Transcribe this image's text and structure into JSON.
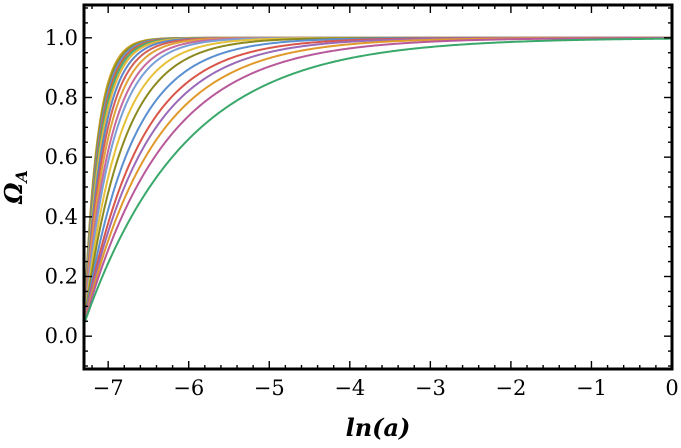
{
  "chart_data": {
    "type": "line",
    "title": "",
    "xlabel": "ln(a)",
    "ylabel": "ΩA",
    "xlim": [
      -7.3,
      0
    ],
    "ylim": [
      -0.11,
      1.11
    ],
    "x_ticks": [
      -7,
      -6,
      -5,
      -4,
      -3,
      -2,
      -1,
      0
    ],
    "x_tick_labels": [
      "−7",
      "−6",
      "−5",
      "−4",
      "−3",
      "−2",
      "−1",
      "0"
    ],
    "y_ticks": [
      0.0,
      0.2,
      0.4,
      0.6,
      0.8,
      1.0
    ],
    "y_tick_labels": [
      "0.0",
      "0.2",
      "0.4",
      "0.6",
      "0.8",
      "1.0"
    ],
    "grid": false,
    "legend": "none",
    "curve_model": "Omega_A = 1 - (1 - 0.04) * exp(-k * (ln(a) + 7.3)); each series is listed by its rate k",
    "x_start": -7.3,
    "start_value": 0.04,
    "series": [
      {
        "k": 6.2,
        "color": "#c9a227"
      },
      {
        "k": 5.9,
        "color": "#8f8f1e"
      },
      {
        "k": 5.6,
        "color": "#6a8fd8"
      },
      {
        "k": 5.3,
        "color": "#d0693a"
      },
      {
        "k": 5.0,
        "color": "#4aae7a"
      },
      {
        "k": 4.7,
        "color": "#e3b83a"
      },
      {
        "k": 4.3,
        "color": "#5b86c9"
      },
      {
        "k": 3.9,
        "color": "#d1605a"
      },
      {
        "k": 3.5,
        "color": "#e0a23a"
      },
      {
        "k": 3.1,
        "color": "#c76a9e"
      },
      {
        "k": 2.8,
        "color": "#7a9fd6"
      },
      {
        "k": 2.4,
        "color": "#e6c13a"
      },
      {
        "k": 2.05,
        "color": "#8c8a1f"
      },
      {
        "k": 1.7,
        "color": "#5a8fd0"
      },
      {
        "k": 1.45,
        "color": "#d8564a"
      },
      {
        "k": 1.3,
        "color": "#9a6ab8"
      },
      {
        "k": 1.15,
        "color": "#e09a2c"
      },
      {
        "k": 1.0,
        "color": "#b85a9a"
      },
      {
        "k": 0.8,
        "color": "#3aa86a"
      }
    ]
  }
}
